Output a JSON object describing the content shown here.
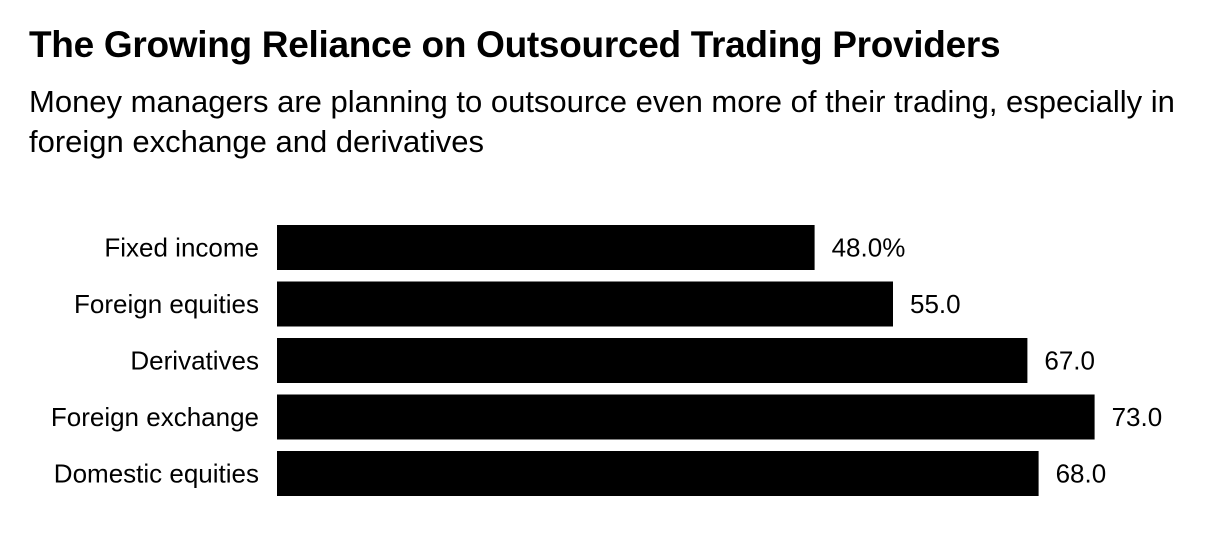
{
  "chart_data": {
    "type": "bar",
    "orientation": "horizontal",
    "title": "The Growing Reliance on Outsourced Trading Providers",
    "subtitle": "Money managers are planning to outsource even more of their trading, especially in foreign exchange and derivatives",
    "categories": [
      "Fixed income",
      "Foreign equities",
      "Derivatives",
      "Foreign exchange",
      "Domestic equities"
    ],
    "values": [
      48.0,
      55.0,
      67.0,
      73.0,
      68.0
    ],
    "value_labels": [
      "48.0%",
      "55.0",
      "67.0",
      "73.0",
      "68.0"
    ],
    "unit": "%",
    "xlim": [
      0,
      100
    ],
    "xlabel": "",
    "ylabel": "",
    "bar_color": "#000000",
    "grid": false,
    "legend": "none"
  }
}
